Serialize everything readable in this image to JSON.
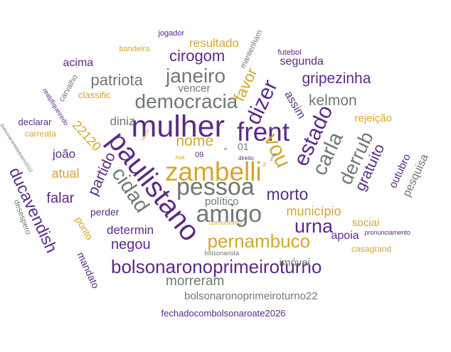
{
  "colors": {
    "purple": "#5b2a86",
    "gold": "#d4a72c",
    "gray": "#6f7a6f"
  },
  "words": [
    {
      "text": "mulher",
      "color": "purple"
    },
    {
      "text": "paulistano",
      "color": "purple"
    },
    {
      "text": "frent",
      "color": "purple"
    },
    {
      "text": "zambelli",
      "color": "gold"
    },
    {
      "text": "pessoa",
      "color": "gray"
    },
    {
      "text": "amigo",
      "color": "gray"
    },
    {
      "text": "democracia",
      "color": "gray"
    },
    {
      "text": "janeiro",
      "color": "gray"
    },
    {
      "text": "dizer",
      "color": "purple"
    },
    {
      "text": "vou",
      "color": "gold"
    },
    {
      "text": "estado",
      "color": "purple"
    },
    {
      "text": "carla",
      "color": "gray"
    },
    {
      "text": "derrub",
      "color": "gray"
    },
    {
      "text": "cidad",
      "color": "gray"
    },
    {
      "text": "urna",
      "color": "purple"
    },
    {
      "text": "pernambuco",
      "color": "gold"
    },
    {
      "text": "bolsonaronoprimeiroturno",
      "color": "purple"
    },
    {
      "text": "ducavendish",
      "color": "purple"
    },
    {
      "text": "morto",
      "color": "purple"
    },
    {
      "text": "gripezinha",
      "color": "purple"
    },
    {
      "text": "patriota",
      "color": "gray"
    },
    {
      "text": "cirogom",
      "color": "purple"
    },
    {
      "text": "favor",
      "color": "gold"
    },
    {
      "text": "kelmon",
      "color": "gray"
    },
    {
      "text": "nome",
      "color": "gold"
    },
    {
      "text": "gratuito",
      "color": "purple"
    },
    {
      "text": "partido",
      "color": "purple"
    },
    {
      "text": "negou",
      "color": "purple"
    },
    {
      "text": "morreram",
      "color": "gray"
    },
    {
      "text": "falar",
      "color": "purple"
    },
    {
      "text": "município",
      "color": "gold"
    },
    {
      "text": "determin",
      "color": "purple"
    },
    {
      "text": "diniz",
      "color": "gray"
    },
    {
      "text": "atual",
      "color": "gold"
    },
    {
      "text": "joão",
      "color": "purple"
    },
    {
      "text": "22120",
      "color": "gold"
    },
    {
      "text": "assim",
      "color": "purple"
    },
    {
      "text": "resultado",
      "color": "gold"
    },
    {
      "text": "segunda",
      "color": "purple"
    },
    {
      "text": "acima",
      "color": "purple"
    },
    {
      "text": "vencer",
      "color": "gray"
    },
    {
      "text": "outubro",
      "color": "purple"
    },
    {
      "text": "pesquisa",
      "color": "gray"
    },
    {
      "text": "rejeição",
      "color": "gold"
    },
    {
      "text": "apoia",
      "color": "purple"
    },
    {
      "text": "sociai",
      "color": "gold"
    },
    {
      "text": "político",
      "color": "gray"
    },
    {
      "text": "imóvei",
      "color": "gray"
    },
    {
      "text": "bolsonaronoprimeiroturno22",
      "color": "gray"
    },
    {
      "text": "fechadocombolsonaroate2026",
      "color": "purple"
    },
    {
      "text": "mandato",
      "color": "purple"
    },
    {
      "text": "ponto",
      "color": "gold"
    },
    {
      "text": "perder",
      "color": "purple"
    },
    {
      "text": "classific",
      "color": "gold"
    },
    {
      "text": "declarar",
      "color": "purple"
    },
    {
      "text": "carreata",
      "color": "gold"
    },
    {
      "text": "desespero",
      "color": "gray"
    },
    {
      "text": "casagrand",
      "color": "gold"
    },
    {
      "text": "pronunciamento",
      "color": "purple"
    },
    {
      "text": "bolsonarista",
      "color": "gray"
    },
    {
      "text": "comunismo",
      "color": "gold"
    },
    {
      "text": "jogador",
      "color": "purple"
    },
    {
      "text": "bandeira",
      "color": "gold"
    },
    {
      "text": "futebol",
      "color": "purple"
    },
    {
      "text": "mantenham",
      "color": "gray"
    },
    {
      "text": "carvalho",
      "color": "gray"
    },
    {
      "text": "realpfiqueiredo",
      "color": "purple"
    },
    {
      "text": "bolsonaroreeleitoem2022",
      "color": "gray"
    },
    {
      "text": "01",
      "color": "gray"
    },
    {
      "text": "09",
      "color": "purple"
    },
    {
      "text": "rua",
      "color": "gold"
    },
    {
      "text": "direito",
      "color": "purple"
    },
    {
      "text": "vista",
      "color": "gray"
    },
    {
      "text": "senhor",
      "color": "gold"
    },
    {
      "text": "jr",
      "color": "gold"
    },
    {
      "text": "ai",
      "color": "gray"
    }
  ]
}
